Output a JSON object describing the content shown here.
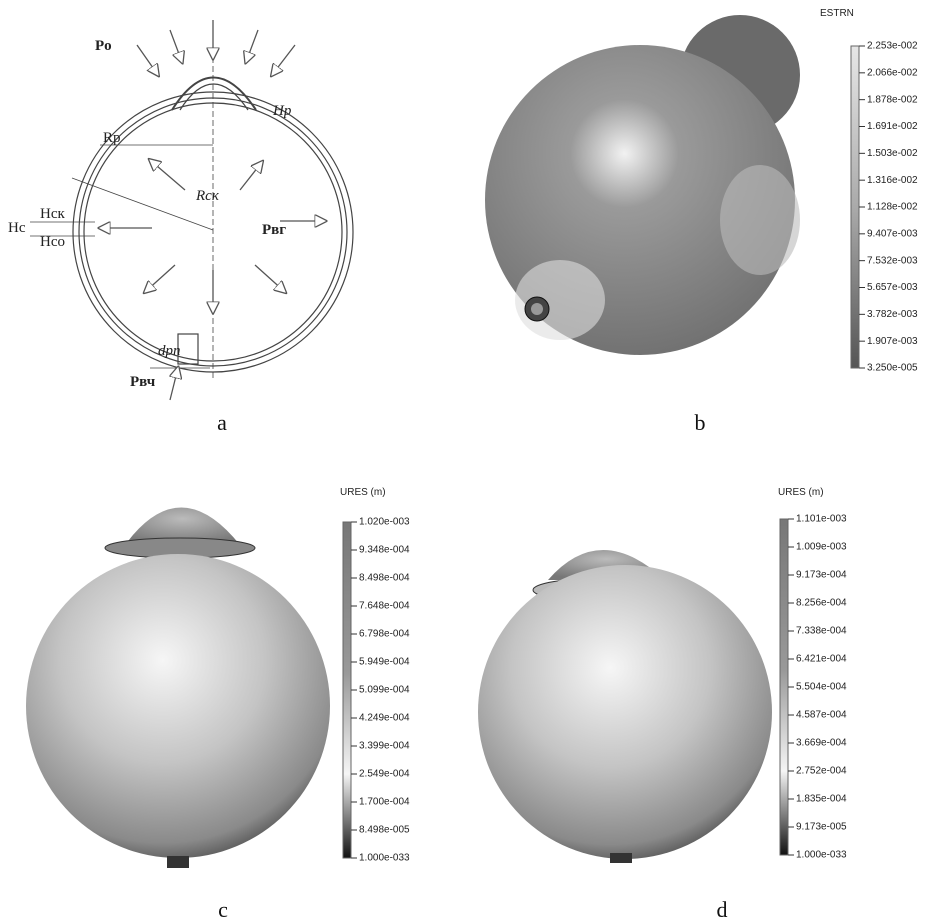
{
  "panels": [
    {
      "caption": "a",
      "labels": [
        "Po",
        "Hp",
        "Rp",
        "Rск",
        "Hск",
        "Hc",
        "Hсо",
        "Pвг",
        "dрп",
        "Pвч"
      ]
    },
    {
      "caption": "b",
      "legend": {
        "title": "ESTRN",
        "ticks": [
          "2.253e-002",
          "2.066e-002",
          "1.878e-002",
          "1.691e-002",
          "1.503e-002",
          "1.316e-002",
          "1.128e-002",
          "9.407e-003",
          "7.532e-003",
          "5.657e-003",
          "3.782e-003",
          "1.907e-003",
          "3.250e-005"
        ]
      }
    },
    {
      "caption": "c",
      "legend": {
        "title": "URES (m)",
        "ticks": [
          "1.020e-003",
          "9.348e-004",
          "8.498e-004",
          "7.648e-004",
          "6.798e-004",
          "5.949e-004",
          "5.099e-004",
          "4.249e-004",
          "3.399e-004",
          "2.549e-004",
          "1.700e-004",
          "8.498e-005",
          "1.000e-033"
        ]
      }
    },
    {
      "caption": "d",
      "legend": {
        "title": "URES (m)",
        "ticks": [
          "1.101e-003",
          "1.009e-003",
          "9.173e-004",
          "8.256e-004",
          "7.338e-004",
          "6.421e-004",
          "5.504e-004",
          "4.587e-004",
          "3.669e-004",
          "2.752e-004",
          "1.835e-004",
          "9.173e-005",
          "1.000e-033"
        ]
      }
    }
  ]
}
